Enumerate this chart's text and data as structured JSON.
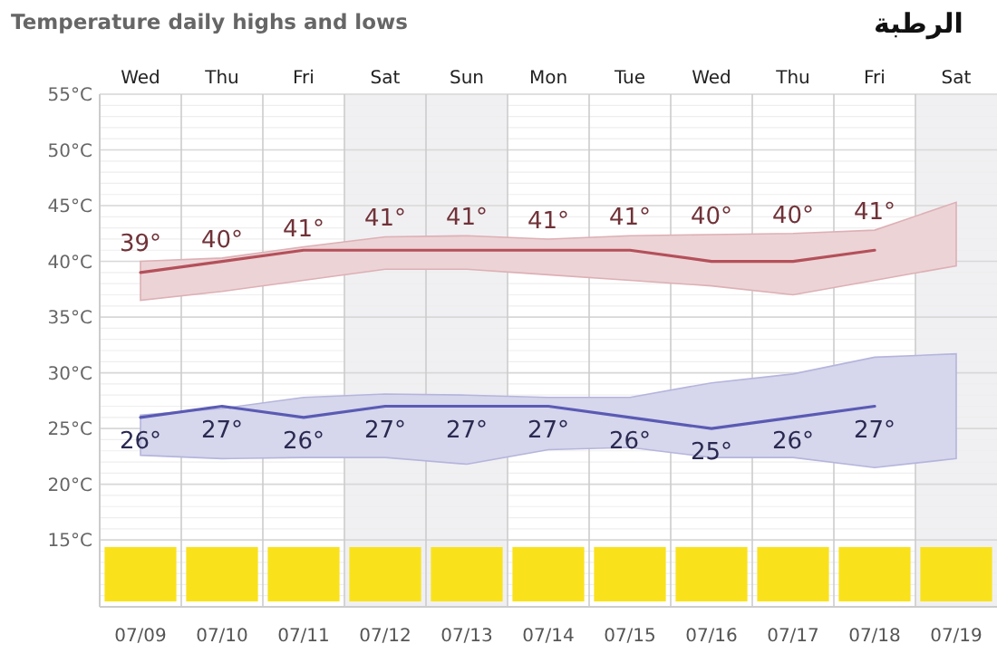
{
  "chart_data": {
    "type": "line",
    "title": "Temperature daily highs and lows",
    "subtitle": "الرطبة",
    "categories": [
      "07/09",
      "07/10",
      "07/11",
      "07/12",
      "07/13",
      "07/14",
      "07/15",
      "07/16",
      "07/17",
      "07/18",
      "07/19"
    ],
    "series": [
      {
        "color": "#b4505a",
        "values": [
          39,
          40,
          41,
          41,
          41,
          41,
          41,
          40,
          40,
          41,
          null
        ],
        "value_labels": [
          "39°",
          "40°",
          "41°",
          "41°",
          "41°",
          "41°",
          "41°",
          "40°",
          "40°",
          "41°",
          null
        ],
        "upper": [
          40,
          40.3,
          41.3,
          42.2,
          42.3,
          42,
          42.3,
          42.4,
          42.5,
          42.8,
          45.3
        ],
        "lower": [
          36.5,
          37.3,
          38.3,
          39.3,
          39.3,
          38.8,
          38.3,
          37.8,
          37,
          38.3,
          39.6
        ]
      },
      {
        "color": "#5a5ab4",
        "values": [
          26,
          27,
          26,
          27,
          27,
          27,
          26,
          25,
          26,
          27,
          null
        ],
        "value_labels": [
          "26°",
          "27°",
          "26°",
          "27°",
          "27°",
          "27°",
          "26°",
          "25°",
          "26°",
          "27°",
          null
        ],
        "upper": [
          26.2,
          26.8,
          27.8,
          28.1,
          28,
          27.8,
          27.8,
          29.1,
          29.9,
          31.4,
          31.7
        ],
        "lower": [
          22.6,
          22.3,
          22.4,
          22.4,
          21.8,
          23.1,
          23.3,
          22.4,
          22.4,
          21.5,
          22.3
        ]
      }
    ],
    "ylim": [
      9,
      55
    ],
    "yticks": [
      {
        "value": 15,
        "label": "15°C"
      },
      {
        "value": 20,
        "label": "20°C"
      },
      {
        "value": 25,
        "label": "25°C"
      },
      {
        "value": 30,
        "label": "30°C"
      },
      {
        "value": 35,
        "label": "35°C"
      },
      {
        "value": 40,
        "label": "40°C"
      },
      {
        "value": 45,
        "label": "45°C"
      },
      {
        "value": 50,
        "label": "50°C"
      },
      {
        "value": 55,
        "label": "55°C"
      }
    ],
    "annotations": [
      "Wed",
      "Thu",
      "Fri",
      "Sat",
      "Sun",
      "Mon",
      "Tue",
      "Wed",
      "Thu",
      "Fri",
      "Sat"
    ],
    "bands": [
      {
        "axis": "x",
        "from": "07/12",
        "to": "07/13",
        "color": "#f0f0f3"
      },
      {
        "axis": "x",
        "from": "07/19",
        "to": "07/19",
        "color": "#f0f0f3"
      }
    ],
    "grid": true,
    "marker": "none",
    "line_style": "solid"
  }
}
